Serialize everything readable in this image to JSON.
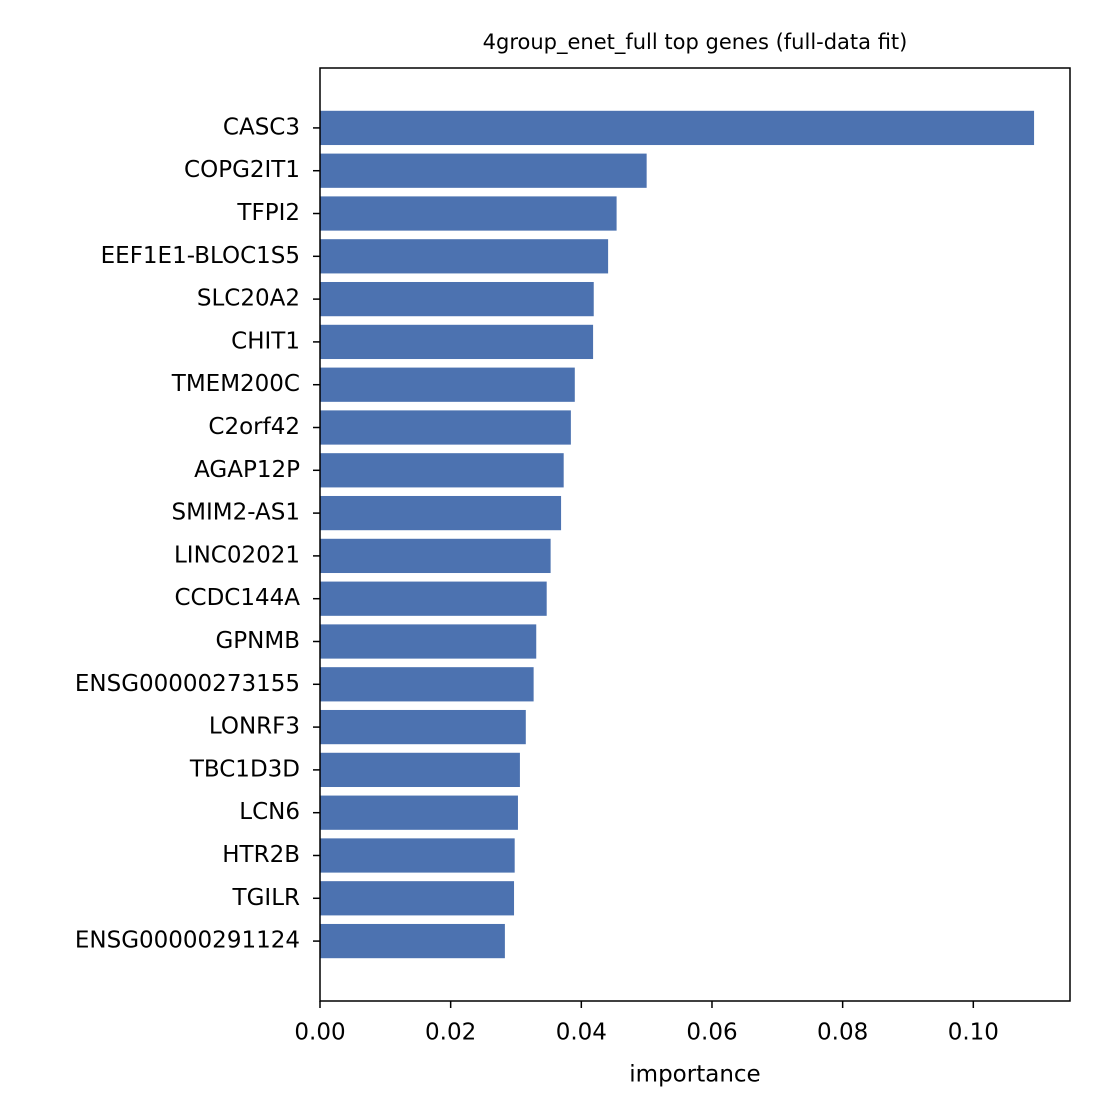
{
  "chart_data": {
    "type": "barh",
    "title": "4group_enet_full top genes (full-data fit)",
    "x_label": "importance",
    "categories": [
      "CASC3",
      "COPG2IT1",
      "TFPI2",
      "EEF1E1-BLOC1S5",
      "SLC20A2",
      "CHIT1",
      "TMEM200C",
      "C2orf42",
      "AGAP12P",
      "SMIM2-AS1",
      "LINC02021",
      "CCDC144A",
      "GPNMB",
      "ENSG00000273155",
      "LONRF3",
      "TBC1D3D",
      "LCN6",
      "HTR2B",
      "TGILR",
      "ENSG00000291124"
    ],
    "values": [
      0.1093,
      0.05,
      0.0454,
      0.0441,
      0.0419,
      0.0418,
      0.039,
      0.0384,
      0.0373,
      0.0369,
      0.0353,
      0.0347,
      0.0331,
      0.0327,
      0.0315,
      0.0306,
      0.0303,
      0.0298,
      0.0297,
      0.0283
    ],
    "color": "#4c72b0",
    "xlim": [
      0,
      0.1148
    ],
    "xticks": [
      {
        "value": 0,
        "label": "0.00"
      },
      {
        "value": 0.02,
        "label": "0.02"
      },
      {
        "value": 0.04,
        "label": "0.04"
      },
      {
        "value": 0.06,
        "label": "0.06"
      },
      {
        "value": 0.08,
        "label": "0.08"
      },
      {
        "value": 0.1,
        "label": "0.10"
      }
    ],
    "grid": false
  }
}
